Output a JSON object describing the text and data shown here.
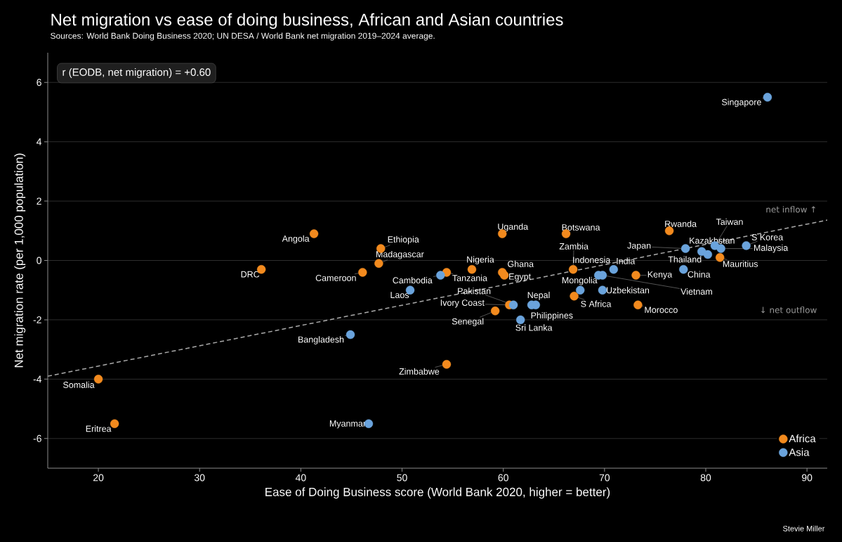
{
  "chart_data": {
    "type": "scatter",
    "title": "Net migration vs ease of doing business, African and Asian countries",
    "subtitle": "Sources: World Bank Doing Business 2020; UN DESA / World Bank net migration 2019–2024 average.",
    "xlabel": "Ease of Doing Business score (World Bank 2020, higher = better)",
    "ylabel": "Net migration rate (per 1,000 population)",
    "xlim": [
      15,
      92
    ],
    "ylim": [
      -7,
      7
    ],
    "xticks": [
      20,
      30,
      40,
      50,
      60,
      70,
      80,
      90
    ],
    "yticks": [
      -6,
      -4,
      -2,
      0,
      2,
      4,
      6
    ],
    "grid": "y",
    "legend": "bottom right",
    "series": [
      {
        "name": "Africa",
        "color": "#f28a1e",
        "marker": "circle",
        "x": [
          20,
          21.6,
          36.1,
          41.3,
          46.1,
          47.7,
          47.9,
          54.4,
          54.4,
          56.9,
          59.9,
          59.9,
          60.1,
          59.2,
          60.6,
          66.2,
          66.9,
          67.0,
          73.1,
          73.3,
          76.4,
          81.4
        ],
        "values": [
          -4.0,
          -5.5,
          -0.3,
          0.9,
          -0.4,
          -0.1,
          0.4,
          -0.4,
          -3.5,
          -0.3,
          0.9,
          -0.4,
          -0.5,
          -1.7,
          -1.5,
          0.9,
          -0.3,
          -1.2,
          -0.5,
          -1.5,
          1.0,
          0.1
        ]
      },
      {
        "name": "Asia",
        "color": "#6aa3dc",
        "marker": "circle",
        "x": [
          44.9,
          46.7,
          50.8,
          53.8,
          61.0,
          62.8,
          63.2,
          61.7,
          67.6,
          69.4,
          69.8,
          69.8,
          70.9,
          77.8,
          78.0,
          79.6,
          80.2,
          80.9,
          81.5,
          84.0,
          86.1
        ],
        "values": [
          -2.5,
          -5.5,
          -1.0,
          -0.5,
          -1.5,
          -1.5,
          -1.5,
          -2.0,
          -1.0,
          -0.5,
          -0.5,
          -1.0,
          -0.3,
          -0.3,
          0.4,
          0.3,
          0.2,
          0.5,
          0.4,
          0.5,
          5.5
        ]
      },
      {
        "type": "line",
        "color": "#aaaaaa",
        "line_style": "dashed",
        "marker": "none",
        "x": [
          15,
          92
        ],
        "values": [
          -3.9,
          1.36
        ]
      }
    ],
    "annotations": [
      {
        "text": "Somalia",
        "x": 20,
        "y": -4.0
      },
      {
        "text": "Eritrea",
        "x": 21.6,
        "y": -5.5
      },
      {
        "text": "DRC",
        "x": 36.1,
        "y": -0.3
      },
      {
        "text": "Angola",
        "x": 41.3,
        "y": 0.9
      },
      {
        "text": "Cameroon",
        "x": 46.1,
        "y": -0.4
      },
      {
        "text": "Madagascar",
        "x": 47.7,
        "y": -0.1
      },
      {
        "text": "Ethiopia",
        "x": 47.9,
        "y": 0.4
      },
      {
        "text": "Tanzania",
        "x": 54.4,
        "y": -0.4
      },
      {
        "text": "Zimbabwe",
        "x": 54.4,
        "y": -3.5
      },
      {
        "text": "Nigeria",
        "x": 56.9,
        "y": -0.3
      },
      {
        "text": "Uganda",
        "x": 59.9,
        "y": 0.9
      },
      {
        "text": "Ghana",
        "x": 59.9,
        "y": -0.4
      },
      {
        "text": "Egypt",
        "x": 60.1,
        "y": -0.5
      },
      {
        "text": "Senegal",
        "x": 59.2,
        "y": -1.7
      },
      {
        "text": "Ivory Coast",
        "x": 60.6,
        "y": -1.5
      },
      {
        "text": "Botswana",
        "x": 66.2,
        "y": 0.9
      },
      {
        "text": "Zambia",
        "x": 66.9,
        "y": -0.3
      },
      {
        "text": "S Africa",
        "x": 67.0,
        "y": -1.2
      },
      {
        "text": "Kenya",
        "x": 73.1,
        "y": -0.5
      },
      {
        "text": "Morocco",
        "x": 73.3,
        "y": -1.5
      },
      {
        "text": "Rwanda",
        "x": 76.4,
        "y": 1.0
      },
      {
        "text": "Mauritius",
        "x": 81.4,
        "y": 0.1
      },
      {
        "text": "Bangladesh",
        "x": 44.9,
        "y": -2.5
      },
      {
        "text": "Myanmar",
        "x": 46.7,
        "y": -5.5
      },
      {
        "text": "Laos",
        "x": 50.8,
        "y": -1.0
      },
      {
        "text": "Cambodia",
        "x": 53.8,
        "y": -0.5
      },
      {
        "text": "Pakistan",
        "x": 61.0,
        "y": -1.5
      },
      {
        "text": "Nepal",
        "x": 62.8,
        "y": -1.5
      },
      {
        "text": "Philippines",
        "x": 63.2,
        "y": -1.5
      },
      {
        "text": "Sri Lanka",
        "x": 61.7,
        "y": -2.0
      },
      {
        "text": "Mongolia",
        "x": 67.6,
        "y": -1.0
      },
      {
        "text": "Indonesia",
        "x": 69.4,
        "y": -0.5
      },
      {
        "text": "Vietnam",
        "x": 69.8,
        "y": -0.5
      },
      {
        "text": "Uzbekistan",
        "x": 69.8,
        "y": -1.0
      },
      {
        "text": "India",
        "x": 70.9,
        "y": -0.3
      },
      {
        "text": "China",
        "x": 77.8,
        "y": -0.3
      },
      {
        "text": "Japan",
        "x": 78.0,
        "y": 0.4
      },
      {
        "text": "Thailand",
        "x": 79.6,
        "y": 0.3
      },
      {
        "text": "Kazakhstan",
        "x": 80.2,
        "y": 0.2
      },
      {
        "text": "Taiwan",
        "x": 80.9,
        "y": 0.5
      },
      {
        "text": "Malaysia",
        "x": 81.5,
        "y": 0.4
      },
      {
        "text": "S Korea",
        "x": 84.0,
        "y": 0.5
      },
      {
        "text": "Singapore",
        "x": 86.1,
        "y": 5.5
      },
      "r (EODB, net migration) = +0.60",
      "net inflow ↑",
      "↓ net outflow",
      "Stevie Miller"
    ]
  }
}
